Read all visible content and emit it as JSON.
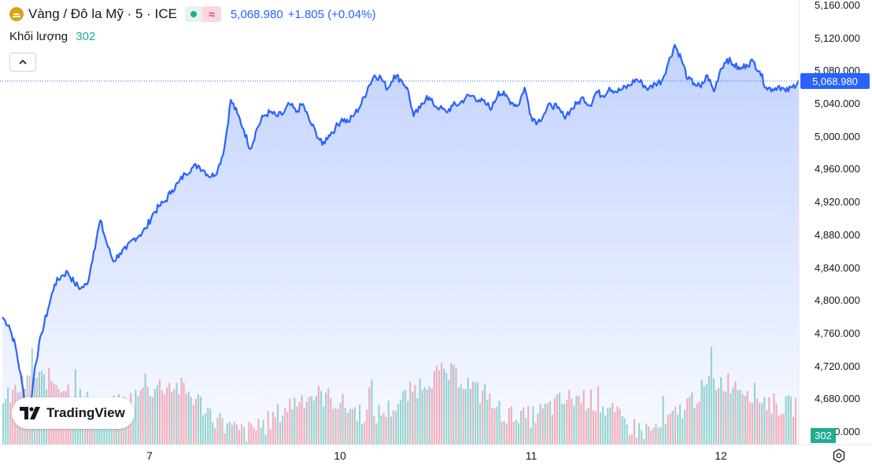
{
  "header": {
    "symbol_title": "Vàng / Đô la Mỹ · 5 · ICE",
    "price": "5,068.980",
    "change": "+1.805 (+0.04%)",
    "volume_label": "Khối lượng",
    "volume_value": "302"
  },
  "price_tag": "5,068.980",
  "volume_tag": "302",
  "logo_text": "TradingView",
  "colors": {
    "line": "#2962ff",
    "up_volume": "#22ab94",
    "down_volume": "#f7525f",
    "gold": "#d9a318"
  },
  "chart_data": {
    "type": "area",
    "title": "Vàng / Đô la Mỹ · 5 · ICE",
    "ylim": [
      4640,
      5160
    ],
    "yticks": [
      "5,160.000",
      "5,120.000",
      "5,080.000",
      "5,040.000",
      "5,000.000",
      "4,960.000",
      "4,920.000",
      "4,880.000",
      "4,840.000",
      "4,800.000",
      "4,760.000",
      "4,720.000",
      "4,680.000",
      "4,640.000"
    ],
    "xticks": [
      "7",
      "10",
      "11",
      "12"
    ],
    "last_price": 5068.98,
    "series": [
      {
        "values": [
          4780,
          4770,
          4745,
          4700,
          4650,
          4720,
          4760,
          4790,
          4820,
          4830,
          4835,
          4822,
          4815,
          4820,
          4860,
          4898,
          4870,
          4848,
          4858,
          4863,
          4875,
          4880,
          4888,
          4905,
          4915,
          4922,
          4935,
          4944,
          4955,
          4962,
          4965,
          4958,
          4951,
          4960,
          4986,
          5045,
          5028,
          5008,
          4985,
          5010,
          5025,
          5030,
          5025,
          5028,
          5040,
          5030,
          5040,
          5020,
          5006,
          4990,
          5002,
          5010,
          5022,
          5018,
          5028,
          5040,
          5060,
          5075,
          5072,
          5058,
          5075,
          5070,
          5060,
          5025,
          5035,
          5050,
          5040,
          5035,
          5030,
          5038,
          5040,
          5048,
          5050,
          5045,
          5040,
          5035,
          5055,
          5050,
          5042,
          5038,
          5060,
          5025,
          5018,
          5028,
          5040,
          5035,
          5025,
          5032,
          5040,
          5048,
          5038,
          5055,
          5050,
          5060,
          5055,
          5058,
          5062,
          5070,
          5065,
          5058,
          5065,
          5068,
          5090,
          5112,
          5095,
          5070,
          5065,
          5060,
          5075,
          5055,
          5082,
          5095,
          5088,
          5082,
          5088,
          5092,
          5080,
          5060,
          5058,
          5062,
          5055,
          5060,
          5068.98
        ]
      }
    ],
    "volume": {
      "max_value": 400
    }
  }
}
